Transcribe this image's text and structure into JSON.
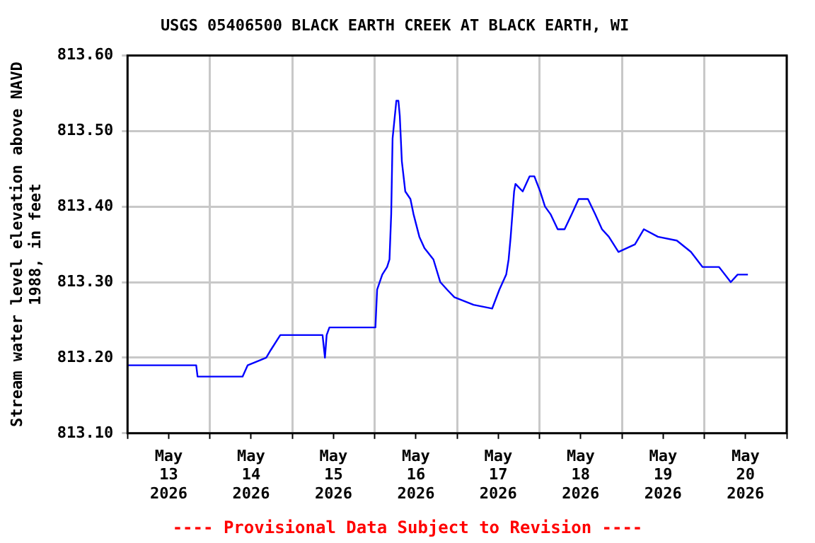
{
  "chart_data": {
    "type": "line",
    "title": "USGS 05406500 BLACK EARTH CREEK AT BLACK EARTH, WI",
    "ylabel": "Stream water level elevation above NAVD 1988, in feet",
    "annotations": [
      "---- Provisional Data Subject to Revision ----"
    ],
    "x": [
      "2026-05-13T00:00",
      "2026-05-13T20:00",
      "2026-05-13T20:24",
      "2026-05-14T09:30",
      "2026-05-14T11:00",
      "2026-05-14T16:24",
      "2026-05-14T17:42",
      "2026-05-14T20:30",
      "2026-05-15T08:48",
      "2026-05-15T09:30",
      "2026-05-15T10:00",
      "2026-05-15T10:48",
      "2026-05-15T21:00",
      "2026-05-16T00:12",
      "2026-05-16T00:42",
      "2026-05-16T02:12",
      "2026-05-16T03:36",
      "2026-05-16T04:18",
      "2026-05-16T04:48",
      "2026-05-16T05:12",
      "2026-05-16T06:18",
      "2026-05-16T06:54",
      "2026-05-16T07:18",
      "2026-05-16T07:54",
      "2026-05-16T08:54",
      "2026-05-16T10:24",
      "2026-05-16T11:18",
      "2026-05-16T13:00",
      "2026-05-16T14:30",
      "2026-05-16T17:06",
      "2026-05-16T19:06",
      "2026-05-16T21:06",
      "2026-05-16T23:12",
      "2026-05-17T04:48",
      "2026-05-17T10:12",
      "2026-05-17T12:18",
      "2026-05-17T14:18",
      "2026-05-17T15:00",
      "2026-05-17T15:36",
      "2026-05-17T16:36",
      "2026-05-17T17:00",
      "2026-05-17T19:06",
      "2026-05-17T21:06",
      "2026-05-17T22:30",
      "2026-05-18T00:12",
      "2026-05-18T01:36",
      "2026-05-18T03:12",
      "2026-05-18T05:18",
      "2026-05-18T07:18",
      "2026-05-18T09:24",
      "2026-05-18T11:24",
      "2026-05-18T14:06",
      "2026-05-18T16:12",
      "2026-05-18T18:12",
      "2026-05-18T20:12",
      "2026-05-18T23:00",
      "2026-05-19T03:48",
      "2026-05-19T06:24",
      "2026-05-19T10:30",
      "2026-05-19T16:00",
      "2026-05-19T20:06",
      "2026-05-19T23:30",
      "2026-05-20T04:18",
      "2026-05-20T07:42",
      "2026-05-20T09:42",
      "2026-05-20T12:42"
    ],
    "series": [
      {
        "color": "#0000ff",
        "values": [
          813.19,
          813.19,
          813.175,
          813.175,
          813.19,
          813.2,
          813.21,
          813.23,
          813.23,
          813.2,
          813.23,
          813.24,
          813.24,
          813.24,
          813.29,
          813.31,
          813.32,
          813.33,
          813.39,
          813.49,
          813.54,
          813.54,
          813.52,
          813.46,
          813.42,
          813.41,
          813.39,
          813.36,
          813.345,
          813.33,
          813.3,
          813.29,
          813.28,
          813.27,
          813.265,
          813.29,
          813.31,
          813.33,
          813.36,
          813.42,
          813.43,
          813.42,
          813.44,
          813.44,
          813.42,
          813.4,
          813.39,
          813.37,
          813.37,
          813.39,
          813.41,
          813.41,
          813.39,
          813.37,
          813.36,
          813.34,
          813.35,
          813.37,
          813.36,
          813.355,
          813.34,
          813.32,
          813.32,
          813.3,
          813.31,
          813.31
        ]
      }
    ],
    "xlim": [
      "2026-05-13T00:00",
      "2026-05-21T00:00"
    ],
    "xticks": [
      {
        "value": "2026-05-13T00:00",
        "label": null
      },
      {
        "value": "2026-05-13T12:00",
        "label": "May\n13\n2026"
      },
      {
        "value": "2026-05-14T00:00",
        "label": null
      },
      {
        "value": "2026-05-14T12:00",
        "label": "May\n14\n2026"
      },
      {
        "value": "2026-05-15T00:00",
        "label": null
      },
      {
        "value": "2026-05-15T12:00",
        "label": "May\n15\n2026"
      },
      {
        "value": "2026-05-16T00:00",
        "label": null
      },
      {
        "value": "2026-05-16T12:00",
        "label": "May\n16\n2026"
      },
      {
        "value": "2026-05-17T00:00",
        "label": null
      },
      {
        "value": "2026-05-17T12:00",
        "label": "May\n17\n2026"
      },
      {
        "value": "2026-05-18T00:00",
        "label": null
      },
      {
        "value": "2026-05-18T12:00",
        "label": "May\n18\n2026"
      },
      {
        "value": "2026-05-19T00:00",
        "label": null
      },
      {
        "value": "2026-05-19T12:00",
        "label": "May\n19\n2026"
      },
      {
        "value": "2026-05-20T00:00",
        "label": null
      },
      {
        "value": "2026-05-20T12:00",
        "label": "May\n20\n2026"
      },
      {
        "value": "2026-05-21T00:00",
        "label": null
      }
    ],
    "ylim": [
      813.1,
      813.6
    ],
    "yticks": [
      {
        "value": 813.1,
        "label": "813.10"
      },
      {
        "value": 813.2,
        "label": "813.20"
      },
      {
        "value": 813.3,
        "label": "813.30"
      },
      {
        "value": 813.4,
        "label": "813.40"
      },
      {
        "value": 813.5,
        "label": "813.50"
      },
      {
        "value": 813.6,
        "label": "813.60"
      }
    ],
    "grid": true,
    "marker": "none",
    "line_style": "solid",
    "legend": false
  }
}
